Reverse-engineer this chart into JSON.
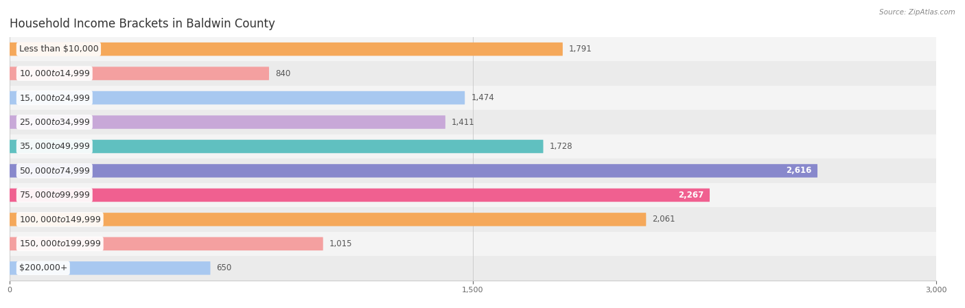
{
  "title": "Household Income Brackets in Baldwin County",
  "source": "Source: ZipAtlas.com",
  "categories": [
    "Less than $10,000",
    "$10,000 to $14,999",
    "$15,000 to $24,999",
    "$25,000 to $34,999",
    "$35,000 to $49,999",
    "$50,000 to $74,999",
    "$75,000 to $99,999",
    "$100,000 to $149,999",
    "$150,000 to $199,999",
    "$200,000+"
  ],
  "values": [
    1791,
    840,
    1474,
    1411,
    1728,
    2616,
    2267,
    2061,
    1015,
    650
  ],
  "colors": [
    "#F5A85A",
    "#F4A0A0",
    "#A8C8F0",
    "#C8A8D8",
    "#60C0C0",
    "#8888CC",
    "#F06090",
    "#F5A85A",
    "#F4A0A0",
    "#A8C8F0"
  ],
  "xlim": [
    0,
    3000
  ],
  "xticks": [
    0,
    1500,
    3000
  ],
  "bar_height": 0.55,
  "row_bg_even": "#f4f4f4",
  "row_bg_odd": "#ebebeb",
  "label_fontsize": 9,
  "title_fontsize": 12,
  "value_fontsize": 8.5,
  "value_inside_threshold": 2200
}
